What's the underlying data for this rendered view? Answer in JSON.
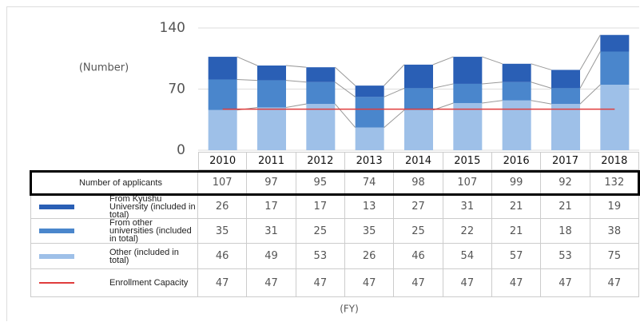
{
  "chart_data": {
    "type": "bar",
    "y_label": "(Number)",
    "x_label": "(FY)",
    "categories": [
      "2010",
      "2011",
      "2012",
      "2013",
      "2014",
      "2015",
      "2016",
      "2017",
      "2018"
    ],
    "ylim": [
      0,
      140
    ],
    "yticks": [
      0,
      70,
      140
    ],
    "grid": true,
    "stacked": true,
    "totals": {
      "name": "Number of applicants",
      "values": [
        107,
        97,
        95,
        74,
        98,
        107,
        99,
        92,
        132
      ]
    },
    "series": [
      {
        "name": "From Kyushu University (included in total)",
        "color": "#2a5fb5",
        "values": [
          26,
          17,
          17,
          13,
          27,
          31,
          21,
          21,
          19
        ]
      },
      {
        "name": "From other universities (included in total)",
        "color": "#4a86cc",
        "values": [
          35,
          31,
          25,
          35,
          25,
          22,
          21,
          18,
          38
        ]
      },
      {
        "name": "Other (included in total)",
        "color": "#9ec0e8",
        "values": [
          46,
          49,
          53,
          26,
          46,
          54,
          57,
          53,
          75
        ]
      },
      {
        "name": "Enrollment Capacity",
        "color": "#e03c3c",
        "type": "line",
        "values": [
          47,
          47,
          47,
          47,
          47,
          47,
          47,
          47,
          47
        ]
      }
    ]
  }
}
